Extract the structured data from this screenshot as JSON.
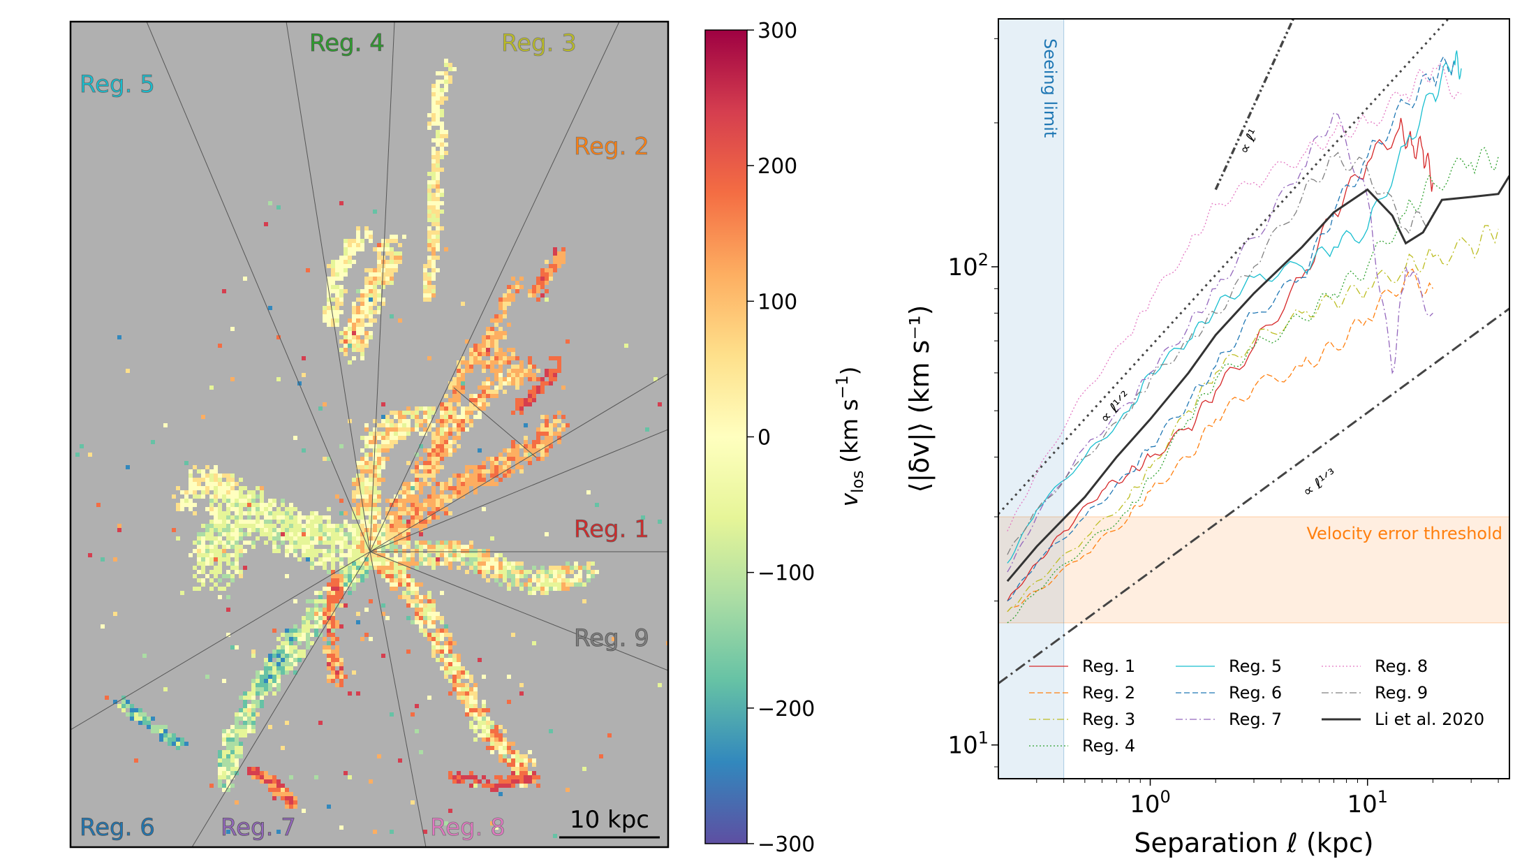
{
  "map_panel": {
    "region_labels": [
      {
        "text": "Reg. 5",
        "color": "#17becf"
      },
      {
        "text": "Reg. 4",
        "color": "#2ca02c"
      },
      {
        "text": "Reg. 3",
        "color": "#bcbd22"
      },
      {
        "text": "Reg. 2",
        "color": "#ff7f0e"
      },
      {
        "text": "Reg. 1",
        "color": "#d62728"
      },
      {
        "text": "Reg. 9",
        "color": "#7f7f7f"
      },
      {
        "text": "Reg. 6",
        "color": "#1f77b4"
      },
      {
        "text": "Reg. 7",
        "color": "#9467bd"
      },
      {
        "text": "Reg. 8",
        "color": "#e377c2"
      }
    ],
    "scalebar_label": "10 kpc",
    "background_color": "#b0b0b0"
  },
  "colorbar": {
    "label": "v_los (km s^-1)",
    "label_main": "v",
    "label_sub": "los",
    "label_unit": " (km s",
    "label_exp": "−1",
    "label_close": ")",
    "range": [
      -300,
      300
    ],
    "ticks": [
      "300",
      "200",
      "100",
      "0",
      "−100",
      "−200",
      "−300"
    ],
    "colormap": "Spectral_r"
  },
  "chart_data": {
    "type": "line",
    "xlabel": "Separation ℓ (kpc)",
    "ylabel": "⟨|δv|⟩ (km s⁻¹)",
    "xscale": "log",
    "yscale": "log",
    "xlim": [
      0.2,
      45
    ],
    "ylim": [
      8.5,
      330
    ],
    "x_ticks": [
      {
        "value": 1,
        "base": "10",
        "exp": "0"
      },
      {
        "value": 10,
        "base": "10",
        "exp": "1"
      }
    ],
    "y_ticks": [
      {
        "value": 10,
        "base": "10",
        "exp": "1"
      },
      {
        "value": 100,
        "base": "10",
        "exp": "2"
      }
    ],
    "annotations": {
      "seeing_limit": {
        "text": "Seeing limit",
        "x_max": 0.4,
        "color": "#1f77b4"
      },
      "velocity_error": {
        "text": "Velocity error threshold",
        "y_range": [
          18,
          30
        ],
        "color": "#ff7f0e"
      },
      "slope_1": {
        "text": "∝ ℓ¹",
        "exponent": 1,
        "x_range": [
          2.0,
          6.5
        ],
        "anchor_x": 2.0,
        "anchor_y": 145
      },
      "slope_half": {
        "text": "∝ ℓ¹ᐟ²",
        "exponent": 0.5,
        "x_range": [
          0.2,
          45
        ],
        "anchor_x": 1.0,
        "anchor_y": 68
      },
      "slope_third": {
        "text": "∝ ℓ¹ᐟ³",
        "exponent": 0.3333,
        "x_range": [
          0.2,
          45
        ],
        "anchor_x": 1.0,
        "anchor_y": 23
      }
    },
    "legend_location": "lower right",
    "series": [
      {
        "name": "Reg. 1",
        "color": "#d62728",
        "dash": "solid",
        "width": 1.3,
        "x": [
          0.22,
          0.3,
          0.4,
          0.6,
          0.8,
          1,
          1.5,
          2,
          3,
          5,
          7,
          10,
          14,
          16,
          18,
          20
        ],
        "y": [
          20,
          24,
          28,
          34,
          37,
          40,
          46,
          55,
          68,
          95,
          130,
          165,
          195,
          180,
          175,
          150
        ]
      },
      {
        "name": "Reg. 2",
        "color": "#ff7f0e",
        "dash": "dashed",
        "width": 1.3,
        "x": [
          0.22,
          0.3,
          0.5,
          0.8,
          1,
          1.5,
          2,
          3,
          5,
          7,
          10,
          15,
          20
        ],
        "y": [
          19,
          21,
          25,
          30,
          34,
          40,
          48,
          56,
          62,
          68,
          78,
          95,
          90
        ]
      },
      {
        "name": "Reg. 3",
        "color": "#bcbd22",
        "dash": "dashdot",
        "width": 1.3,
        "x": [
          0.22,
          0.3,
          0.5,
          0.8,
          1,
          1.5,
          2,
          3,
          5,
          7,
          10,
          15,
          20,
          30,
          40
        ],
        "y": [
          19,
          22,
          27,
          33,
          38,
          50,
          60,
          70,
          80,
          85,
          90,
          100,
          105,
          110,
          120
        ]
      },
      {
        "name": "Reg. 4",
        "color": "#2ca02c",
        "dash": "dotted",
        "width": 1.3,
        "x": [
          0.22,
          0.3,
          0.5,
          0.8,
          1,
          1.5,
          2,
          3,
          5,
          7,
          10,
          15,
          20,
          30,
          40
        ],
        "y": [
          18,
          21,
          26,
          31,
          36,
          48,
          58,
          68,
          78,
          88,
          100,
          130,
          150,
          165,
          170
        ]
      },
      {
        "name": "Reg. 5",
        "color": "#17becf",
        "dash": "solid",
        "width": 1.3,
        "x": [
          0.22,
          0.3,
          0.5,
          0.8,
          1,
          1.5,
          2,
          3,
          5,
          7,
          10,
          15,
          20,
          25,
          27
        ],
        "y": [
          24,
          31,
          40,
          50,
          60,
          70,
          82,
          95,
          100,
          110,
          120,
          180,
          230,
          270,
          260
        ]
      },
      {
        "name": "Reg. 6",
        "color": "#1f77b4",
        "dash": "dashed",
        "width": 1.3,
        "x": [
          0.22,
          0.3,
          0.5,
          0.8,
          1,
          1.5,
          2,
          3,
          5,
          7,
          10,
          15,
          20,
          25
        ],
        "y": [
          20,
          24,
          30,
          37,
          42,
          52,
          62,
          80,
          95,
          130,
          170,
          220,
          250,
          270
        ]
      },
      {
        "name": "Reg. 7",
        "color": "#9467bd",
        "dash": "dashdot",
        "width": 1.3,
        "x": [
          0.22,
          0.3,
          0.5,
          0.8,
          1,
          1.5,
          2,
          3,
          5,
          7,
          10,
          13,
          15,
          20
        ],
        "y": [
          23,
          30,
          42,
          52,
          60,
          75,
          90,
          115,
          160,
          210,
          140,
          60,
          100,
          80
        ]
      },
      {
        "name": "Reg. 8",
        "color": "#e377c2",
        "dash": "dotted",
        "width": 1.3,
        "x": [
          0.22,
          0.3,
          0.5,
          0.8,
          1,
          1.5,
          2,
          3,
          5,
          7,
          10,
          15,
          20,
          27
        ],
        "y": [
          28,
          37,
          55,
          72,
          85,
          110,
          135,
          150,
          170,
          190,
          200,
          230,
          260,
          230
        ]
      },
      {
        "name": "Reg. 9",
        "color": "#7f7f7f",
        "dash": "dashdot",
        "width": 1.3,
        "x": [
          0.22,
          0.3,
          0.5,
          0.8,
          1,
          1.5,
          2,
          3,
          5,
          7,
          10,
          15,
          20
        ],
        "y": [
          25,
          31,
          40,
          50,
          58,
          70,
          80,
          100,
          140,
          170,
          160,
          120,
          130
        ]
      },
      {
        "name": "Li et al. 2020",
        "color": "#333333",
        "dash": "solid",
        "width": 3,
        "x": [
          0.22,
          0.3,
          0.5,
          0.7,
          1,
          1.5,
          2,
          3,
          5,
          7,
          10,
          13,
          15,
          18,
          22,
          30,
          40,
          45
        ],
        "y": [
          22,
          26,
          33,
          40,
          48,
          60,
          72,
          88,
          110,
          130,
          145,
          128,
          112,
          118,
          138,
          140,
          142,
          155
        ]
      }
    ]
  }
}
